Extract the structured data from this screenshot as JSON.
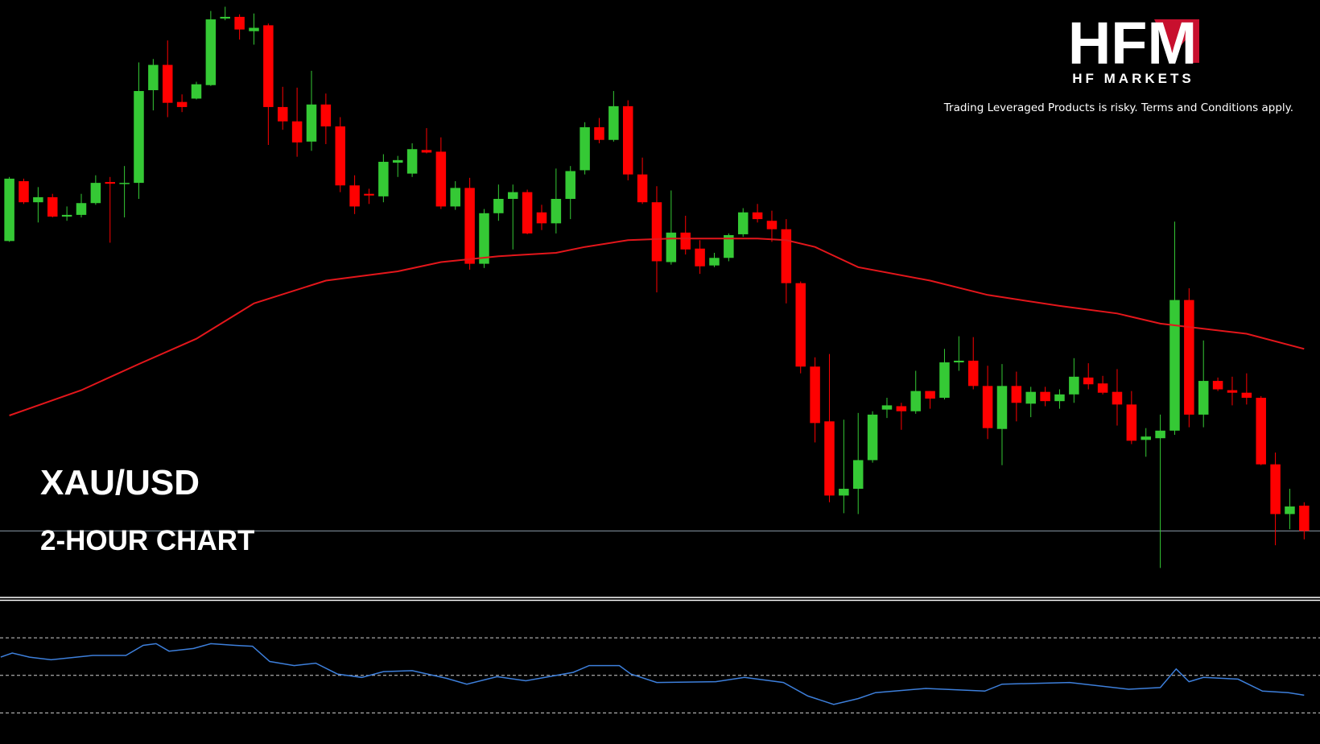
{
  "header": {
    "logo": "HFM",
    "brand": "HF MARKETS",
    "disclaimer": "Trading Leveraged Products is risky. Terms and Conditions apply."
  },
  "chart_data": [
    {
      "type": "candlestick",
      "title": "XAU/USD",
      "subtitle": "2-HOUR CHART",
      "open": [
        414,
        485,
        460,
        466,
        443,
        445,
        459,
        484,
        482,
        483,
        593,
        623,
        579,
        583,
        599,
        678,
        680,
        663,
        670,
        573,
        556,
        532,
        576,
        550,
        480,
        470,
        467,
        507,
        494,
        522,
        520,
        455,
        477,
        387,
        447,
        464,
        472,
        448,
        435,
        464,
        498,
        549,
        534,
        574,
        493,
        460,
        389,
        424,
        405,
        385,
        394,
        422,
        448,
        438,
        428,
        364,
        265,
        200,
        112,
        120,
        154,
        214,
        218,
        212,
        236,
        228,
        270,
        272,
        242,
        191,
        242,
        221,
        235,
        224,
        232,
        252,
        245,
        235,
        220,
        178,
        180,
        189,
        344,
        208,
        248,
        237,
        234,
        228,
        149,
        90,
        100
      ],
      "high": [
        490,
        488,
        478,
        470,
        455,
        470,
        492,
        490,
        503,
        626,
        630,
        652,
        588,
        603,
        687,
        692,
        683,
        684,
        672,
        597,
        596,
        616,
        589,
        561,
        492,
        476,
        517,
        515,
        530,
        548,
        537,
        485,
        489,
        452,
        481,
        481,
        475,
        457,
        500,
        503,
        555,
        560,
        592,
        581,
        513,
        479,
        474,
        444,
        415,
        400,
        423,
        453,
        458,
        450,
        440,
        366,
        276,
        280,
        202,
        210,
        212,
        228,
        222,
        260,
        236,
        286,
        301,
        300,
        266,
        268,
        259,
        241,
        241,
        238,
        275,
        269,
        254,
        262,
        236,
        192,
        208,
        437,
        358,
        296,
        252,
        253,
        257,
        230,
        163,
        120,
        104
      ],
      "low": [
        413,
        458,
        436,
        442,
        438,
        442,
        457,
        412,
        442,
        464,
        569,
        561,
        567,
        582,
        598,
        676,
        653,
        647,
        528,
        546,
        514,
        521,
        529,
        472,
        446,
        458,
        460,
        490,
        490,
        518,
        452,
        451,
        380,
        382,
        438,
        404,
        422,
        427,
        423,
        440,
        493,
        530,
        532,
        486,
        458,
        353,
        386,
        398,
        375,
        383,
        390,
        419,
        436,
        413,
        340,
        257,
        175,
        104,
        91,
        90,
        151,
        204,
        190,
        209,
        215,
        226,
        260,
        238,
        179,
        148,
        200,
        205,
        218,
        215,
        222,
        238,
        232,
        195,
        173,
        158,
        26,
        184,
        193,
        193,
        236,
        219,
        220,
        148,
        53,
        72,
        60
      ],
      "close": [
        488,
        460,
        466,
        443,
        445,
        459,
        483,
        482,
        483,
        592,
        623,
        578,
        573,
        600,
        677,
        680,
        665,
        667,
        573,
        556,
        531,
        576,
        550,
        480,
        455,
        468,
        508,
        510,
        523,
        519,
        455,
        477,
        387,
        447,
        464,
        472,
        423,
        435,
        464,
        497,
        549,
        534,
        574,
        493,
        460,
        390,
        424,
        404,
        384,
        394,
        421,
        448,
        440,
        428,
        364,
        265,
        198,
        112,
        120,
        154,
        208,
        219,
        212,
        236,
        227,
        270,
        272,
        242,
        192,
        242,
        222,
        235,
        224,
        232,
        253,
        244,
        234,
        220,
        177,
        182,
        189,
        344,
        208,
        248,
        238,
        234,
        228,
        149,
        90,
        99,
        70
      ],
      "up_color": "#35c935",
      "down_color": "#ff0000",
      "xlim": [
        -0.65,
        91.1
      ],
      "ylim": [
        -8,
        700
      ],
      "hline": 70,
      "hline_color": "#8a9aa8",
      "overlay": {
        "type": "line",
        "color": "#e3161b",
        "x": [
          0,
          5,
          9,
          13,
          17,
          22,
          27,
          30,
          34,
          38,
          40,
          43,
          46,
          52,
          54,
          56,
          59,
          64,
          68,
          73,
          77,
          80,
          82,
          86,
          90
        ],
        "values": [
          207,
          237,
          268,
          298,
          340,
          367,
          378,
          389,
          396,
          400,
          407,
          415,
          417,
          417,
          415,
          407,
          383,
          367,
          350,
          337,
          328,
          316,
          312,
          304,
          286
        ]
      }
    },
    {
      "type": "line",
      "color": "#3d7fdb",
      "x": [
        -0.6,
        0.2,
        1.4,
        2.9,
        5.8,
        8.1,
        9.3,
        10.2,
        11.1,
        12.8,
        14.0,
        15.7,
        16.9,
        18.1,
        19.8,
        21.3,
        22.8,
        24.5,
        26.0,
        28.0,
        30.4,
        31.8,
        33.9,
        35.9,
        39.2,
        40.3,
        42.4,
        43.2,
        45.0,
        49.1,
        51.1,
        53.8,
        55.5,
        57.3,
        59.0,
        60.2,
        63.7,
        67.8,
        69.0,
        73.7,
        77.8,
        80.0,
        81.1,
        82.0,
        83.0,
        85.4,
        87.1,
        88.9,
        90.0
      ],
      "values": [
        59.7,
        61.9,
        59.7,
        58.3,
        60.6,
        60.6,
        66,
        66.9,
        62.9,
        64.3,
        66.9,
        66,
        65.5,
        57.4,
        55.2,
        56.5,
        50.7,
        48.9,
        52,
        52.5,
        48.4,
        45.3,
        49.3,
        47.1,
        51.6,
        55.2,
        55.2,
        50.7,
        46.2,
        46.6,
        48.9,
        46.2,
        39,
        34.5,
        37.6,
        40.8,
        43,
        41.6,
        45.3,
        46.2,
        42.6,
        43.5,
        53.4,
        46.6,
        48.9,
        48,
        41.6,
        40.8,
        39.4
      ],
      "xlim": [
        -0.65,
        91.1
      ],
      "ylim": [
        13.4,
        89.8
      ],
      "levels": [
        70,
        50,
        30
      ],
      "level_color": "#cfcfcf"
    }
  ]
}
